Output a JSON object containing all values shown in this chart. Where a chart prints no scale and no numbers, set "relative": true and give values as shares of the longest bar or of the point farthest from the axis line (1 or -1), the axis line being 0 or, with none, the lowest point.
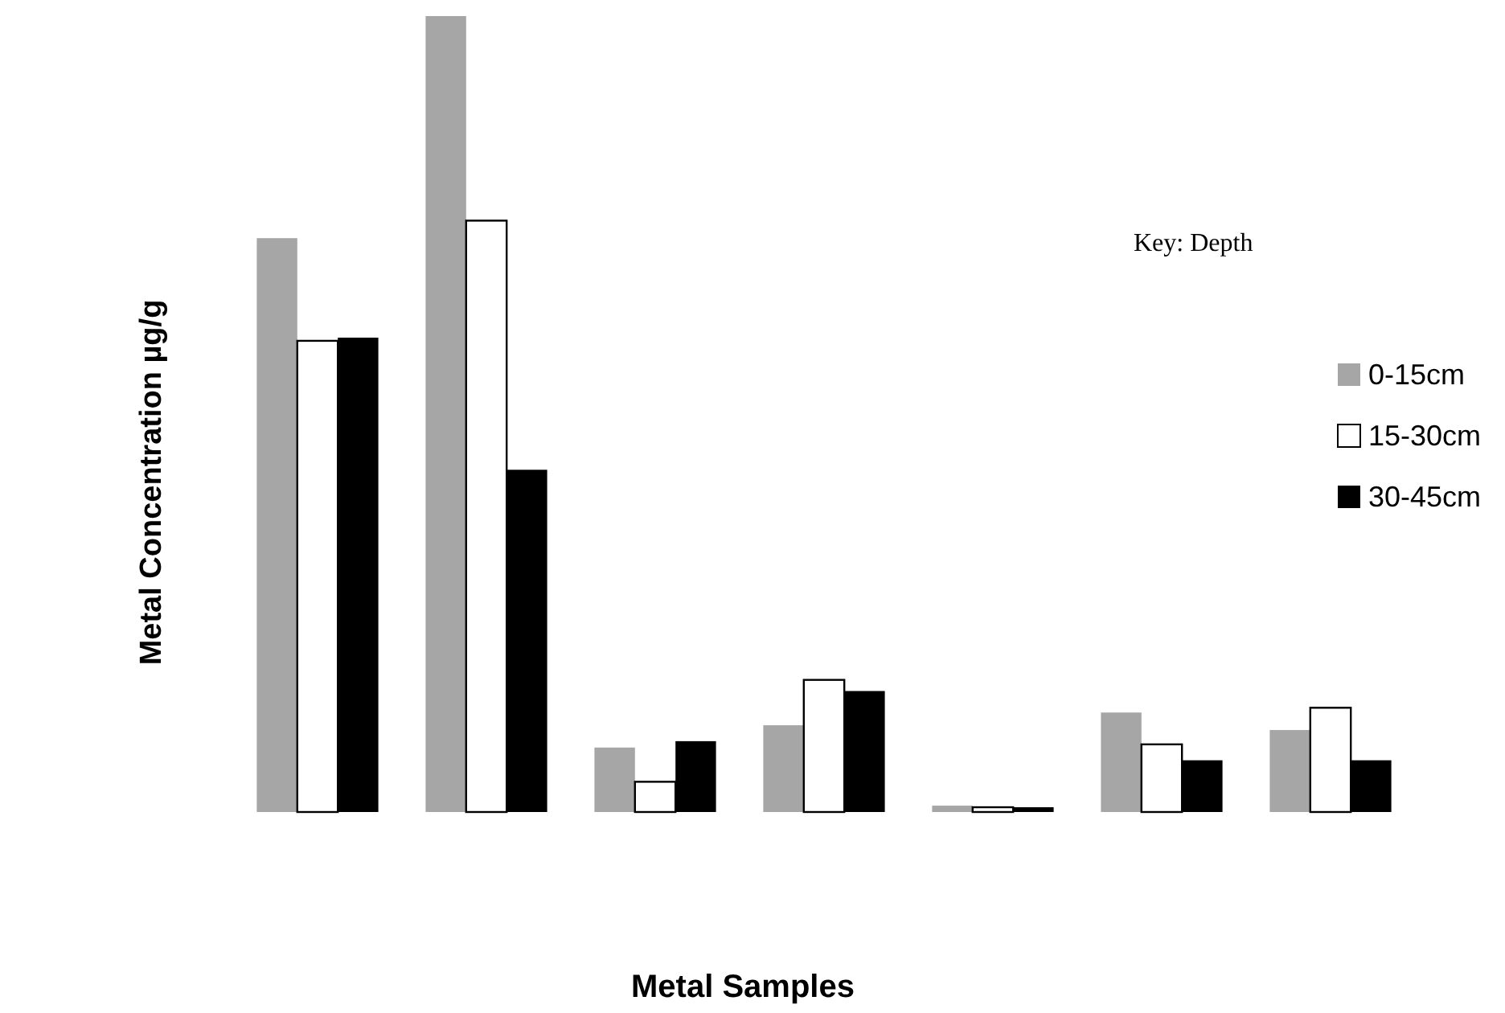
{
  "chart_data": {
    "type": "bar",
    "xlabel": "Metal Samples",
    "ylabel": "Metal Concentration µg/g",
    "legend_title": "Key: Depth",
    "legend": "right",
    "relative": true,
    "categories": [
      null,
      null,
      null,
      null,
      null,
      null,
      null
    ],
    "series": [
      {
        "name": "0-15cm",
        "color": "#a6a6a6",
        "values": [
          0.721,
          1,
          0.081,
          0.109,
          0.008,
          0.125,
          0.103
        ]
      },
      {
        "name": "15-30cm",
        "color": "#ffffff",
        "values": [
          0.592,
          0.743,
          0.038,
          0.166,
          0.006,
          0.085,
          0.131
        ]
      },
      {
        "name": "30-45cm",
        "color": "#000000",
        "values": [
          0.596,
          0.43,
          0.089,
          0.152,
          0.006,
          0.065,
          0.065
        ]
      }
    ]
  }
}
